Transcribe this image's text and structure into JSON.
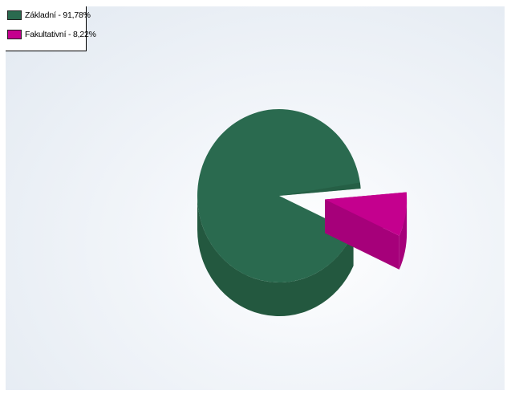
{
  "chart_data": {
    "type": "pie",
    "style": "3d",
    "title": "",
    "legend_position": "top-left",
    "slices": [
      {
        "label": "Základní - 91,78%",
        "value": 91.78,
        "color": "#2a6a4f",
        "side_color": "#23583f",
        "exploded": false
      },
      {
        "label": "Fakultativní - 8,22%",
        "value": 8.22,
        "color": "#c4008e",
        "side_color": "#a6007a",
        "exploded": true
      }
    ]
  }
}
